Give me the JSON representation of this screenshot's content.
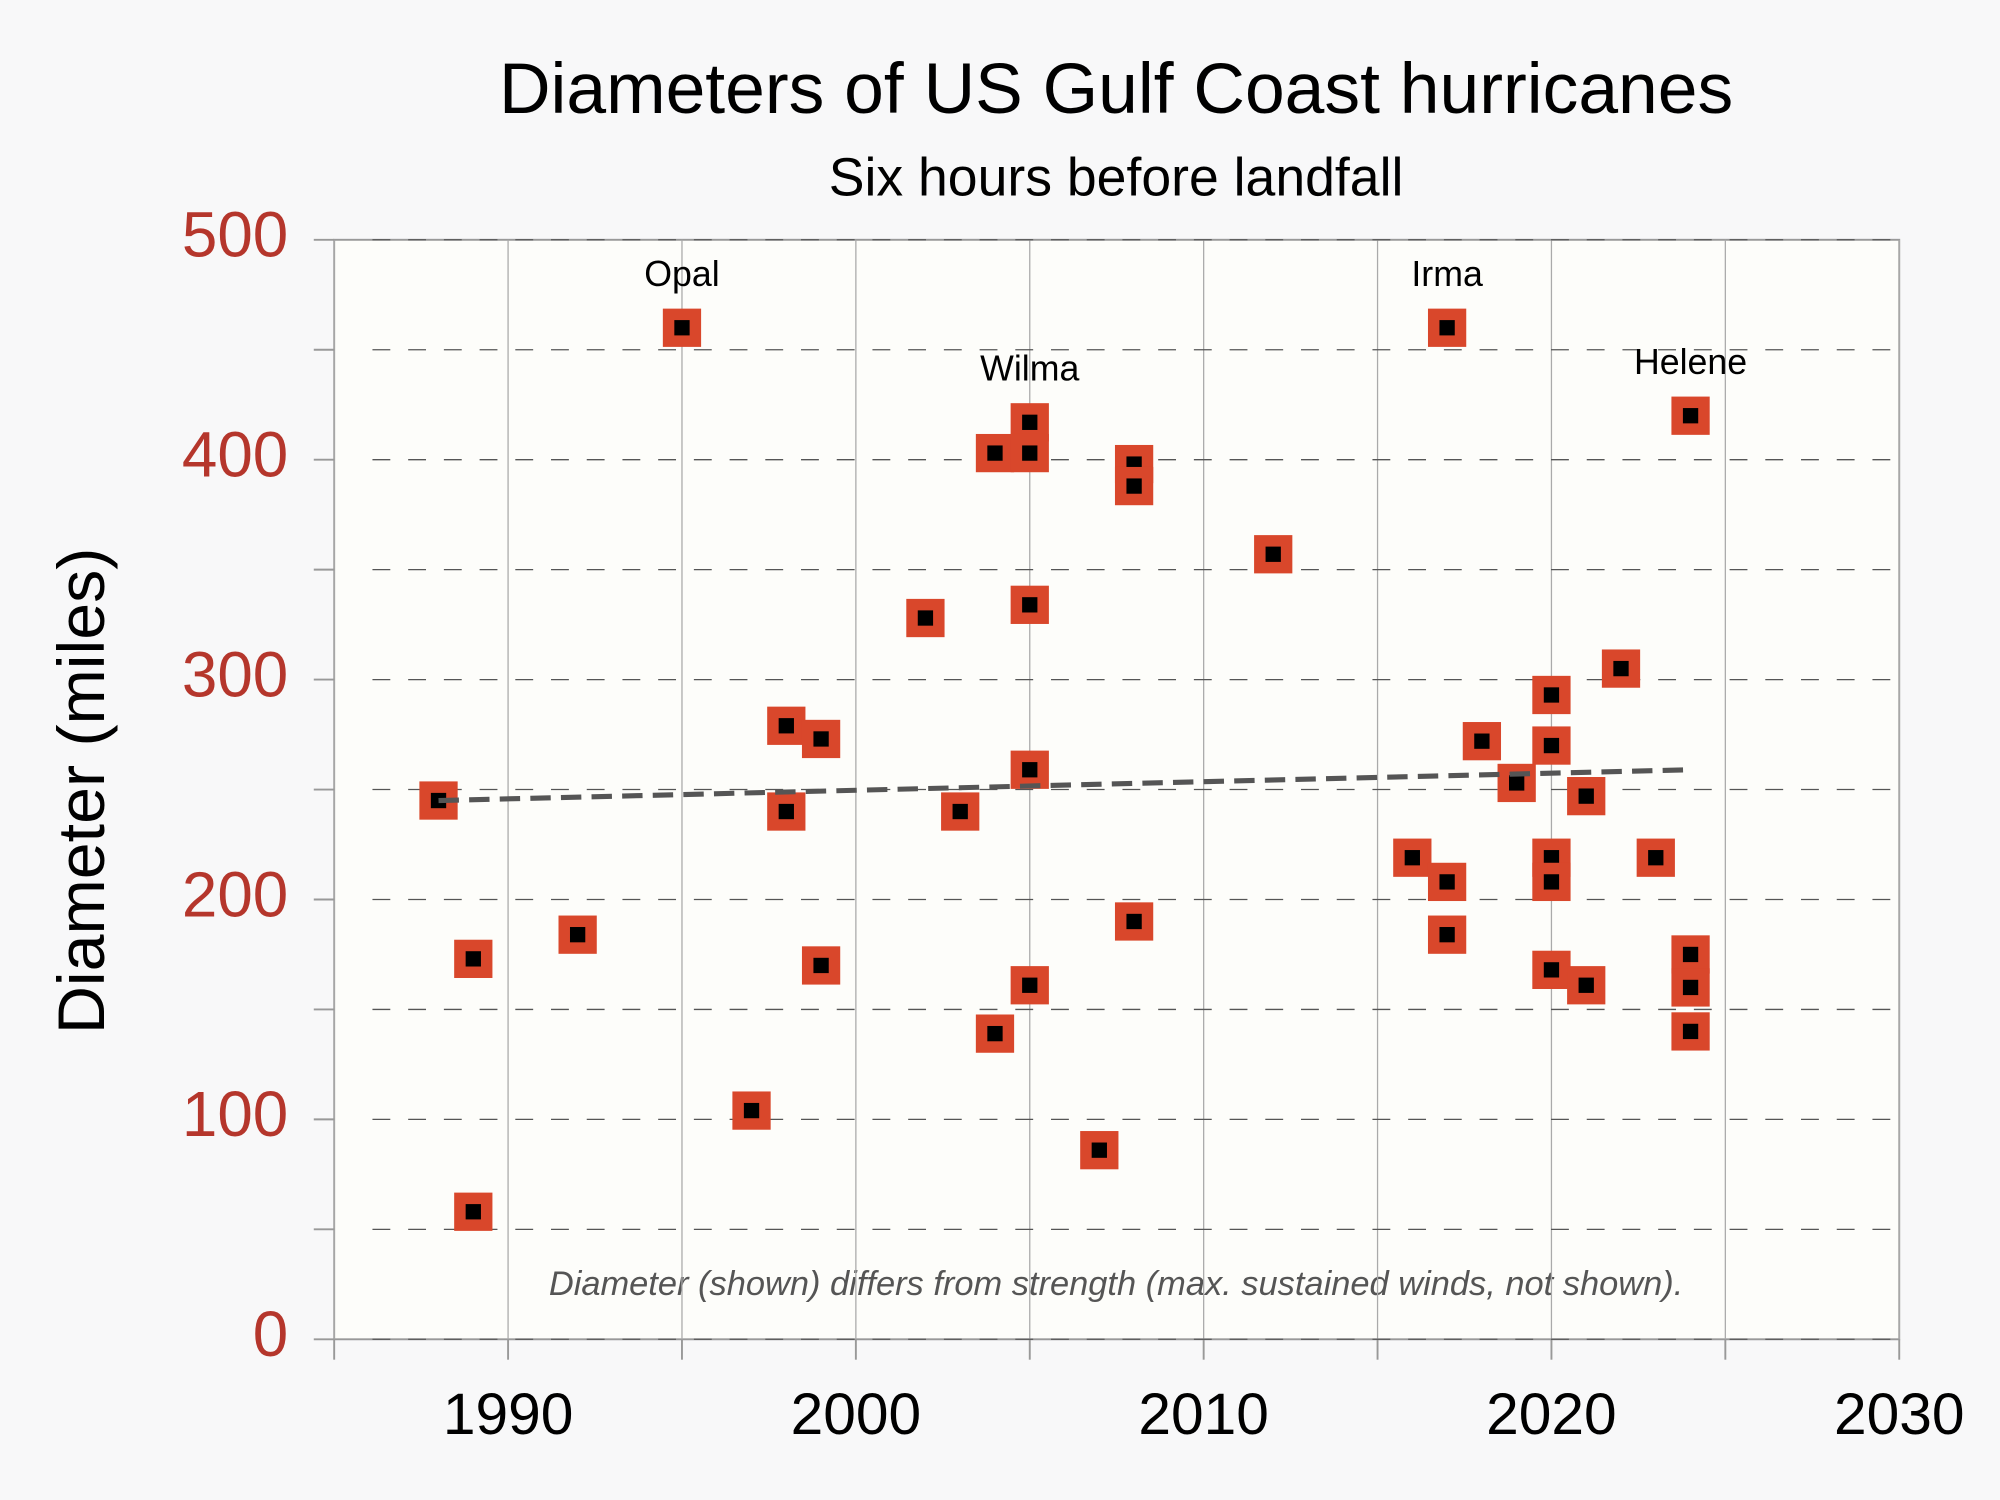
{
  "chart_data": {
    "type": "scatter",
    "title": "Diameters of US Gulf Coast hurricanes",
    "subtitle": "Six hours before landfall",
    "y_label": "Diameter (miles)",
    "note": "Diameter (shown) differs from strength (max. sustained winds, not shown).",
    "x": [
      1988,
      1989,
      1989,
      1992,
      1995,
      1997,
      1998,
      1998,
      1999,
      1999,
      2002,
      2003,
      2004,
      2004,
      2005,
      2005,
      2005,
      2005,
      2005,
      2007,
      2008,
      2008,
      2008,
      2012,
      2016,
      2017,
      2017,
      2017,
      2018,
      2019,
      2020,
      2020,
      2020,
      2020,
      2020,
      2021,
      2021,
      2022,
      2023,
      2024,
      2024,
      2024,
      2024
    ],
    "values": [
      245,
      173,
      58,
      184,
      460,
      104,
      279,
      240,
      273,
      170,
      328,
      240,
      403,
      139,
      417,
      403,
      334,
      259,
      161,
      86,
      398,
      388,
      190,
      357,
      219,
      460,
      208,
      184,
      272,
      253,
      293,
      270,
      219,
      208,
      168,
      247,
      161,
      305,
      219,
      420,
      175,
      160,
      140
    ],
    "color": "#d9472b",
    "trendline": {
      "x": [
        1988,
        2024
      ],
      "values": [
        245,
        259
      ],
      "color": "#555555"
    },
    "annotations": [
      {
        "text": "Opal",
        "x": 1995,
        "y": 460
      },
      {
        "text": "Wilma",
        "x": 2005,
        "y": 417
      },
      {
        "text": "Irma",
        "x": 2017,
        "y": 460
      },
      {
        "text": "Helene",
        "x": 2024,
        "y": 420
      }
    ],
    "xlim": [
      1985,
      2030
    ],
    "ylim": [
      0,
      500
    ],
    "xticks": [
      1990,
      2000,
      2010,
      2020,
      2030
    ],
    "x_minor_ticks": [
      1985,
      1995,
      2005,
      2015,
      2025
    ],
    "yticks": [
      0,
      100,
      200,
      300,
      400,
      500
    ],
    "y_minor_ticks": [
      50,
      150,
      250,
      350,
      450
    ],
    "grid": true
  }
}
